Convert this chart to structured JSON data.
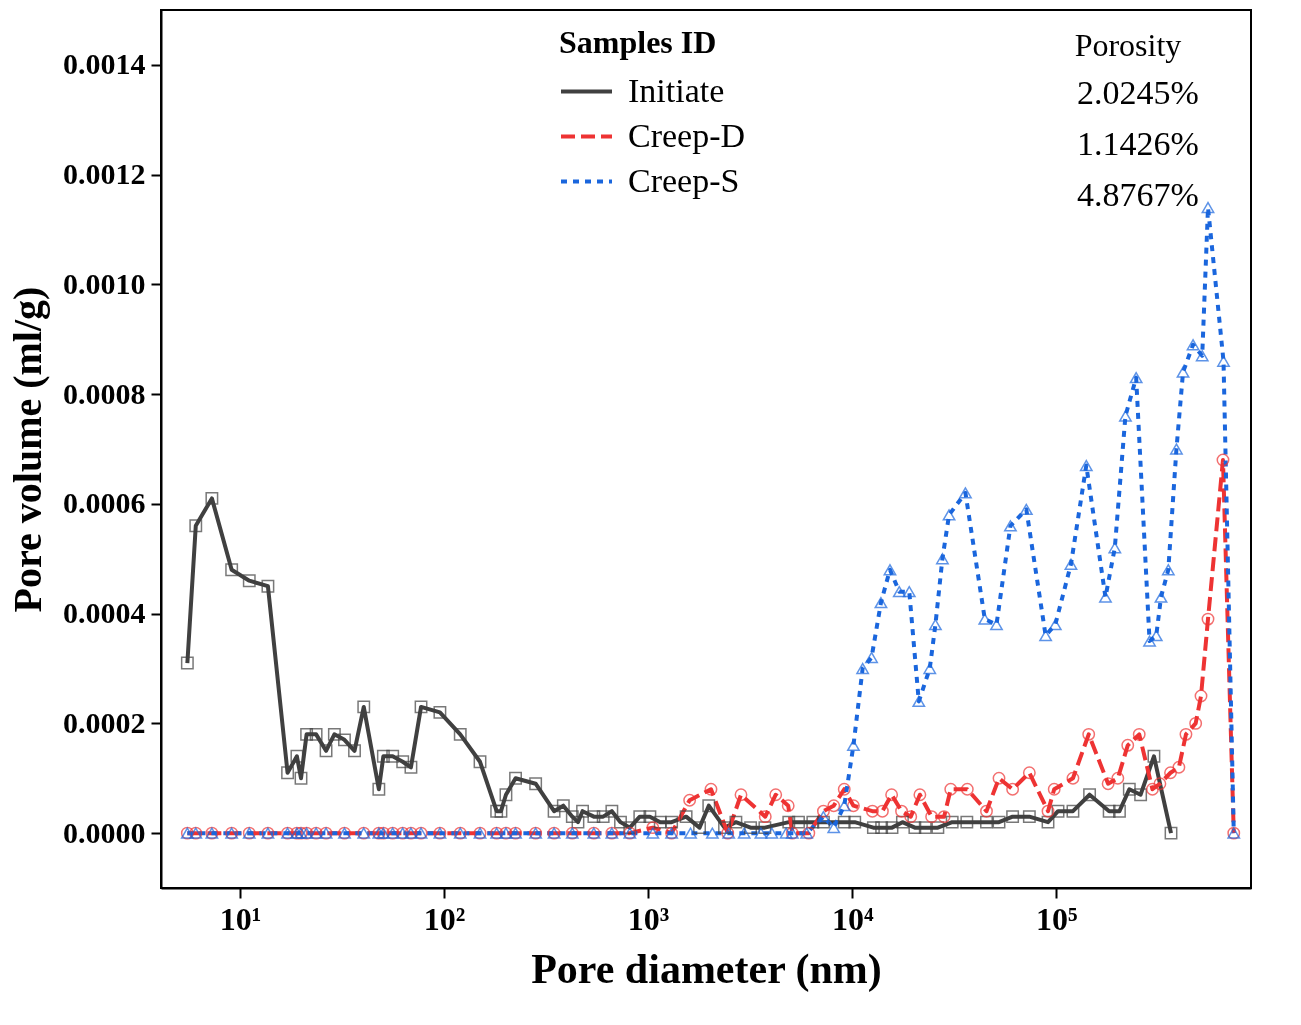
{
  "chart_data": {
    "type": "line",
    "xlabel": "Pore diameter (nm)",
    "ylabel": "Pore volume (ml/g)",
    "legend_title": "Samples ID",
    "log": "x",
    "grid": false,
    "legend": "top",
    "xlim": [
      4.1,
      900000
    ],
    "xticks": [
      {
        "value": 10,
        "label": "10¹"
      },
      {
        "value": 100,
        "label": "10²"
      },
      {
        "value": 1000,
        "label": "10³"
      },
      {
        "value": 10000,
        "label": "10⁴"
      },
      {
        "value": 100000,
        "label": "10⁵"
      }
    ],
    "ylim": [
      -0.0001,
      0.0015
    ],
    "yticks": [
      {
        "value": 0,
        "label": "0.0000"
      },
      {
        "value": 0.0002,
        "label": "0.0002"
      },
      {
        "value": 0.0004,
        "label": "0.0004"
      },
      {
        "value": 0.0006,
        "label": "0.0006"
      },
      {
        "value": 0.0008,
        "label": "0.0008"
      },
      {
        "value": 0.001,
        "label": "0.0010"
      },
      {
        "value": 0.0012,
        "label": "0.0012"
      },
      {
        "value": 0.0014,
        "label": "0.0014"
      }
    ],
    "annotations": [
      "Porosity",
      "2.0245%",
      "1.1426%",
      "4.8767%"
    ],
    "series": [
      {
        "name": "Initiate",
        "color": "#404040",
        "marker": "square",
        "line_style": "solid",
        "x": [
          5.52,
          6.07,
          7.28,
          9.1,
          11.1,
          13.7,
          17.1,
          19.0,
          19.9,
          21.2,
          23.6,
          26.4,
          29.0,
          32.5,
          36.4,
          40.4,
          47.9,
          50.4,
          56.0,
          62.7,
          68.8,
          77.1,
          95.4,
          120,
          150,
          181,
          190,
          201,
          224,
          281,
          346,
          384,
          425,
          453,
          477,
          542,
          602,
          664,
          732,
          813,
          910,
          1020,
          1146,
          1303,
          1535,
          1786,
          1982,
          2367,
          2692,
          3177,
          3733,
          4889,
          5455,
          6412,
          7228,
          9140,
          10290,
          12700,
          13940,
          15670,
          17620,
          20280,
          22800,
          26290,
          30900,
          36450,
          45500,
          52400,
          61100,
          73800,
          91100,
          102000,
          120700,
          145600,
          181600,
          204000,
          228000,
          259000,
          301000,
          365000
        ],
        "values": [
          0.00031,
          0.00056,
          0.00061,
          0.00048,
          0.00046,
          0.00045,
          0.00011,
          0.00014,
          0.0001,
          0.00018,
          0.00018,
          0.00015,
          0.00018,
          0.00017,
          0.00015,
          0.00023,
          8e-05,
          0.00014,
          0.00014,
          0.00013,
          0.00012,
          0.00023,
          0.00022,
          0.00018,
          0.00013,
          4e-05,
          4e-05,
          7e-05,
          0.0001,
          9e-05,
          4e-05,
          5e-05,
          3e-05,
          2e-05,
          4e-05,
          3e-05,
          3e-05,
          4e-05,
          2e-05,
          1e-05,
          3e-05,
          3e-05,
          2e-05,
          2e-05,
          3e-05,
          1e-05,
          5e-05,
          1e-05,
          2e-05,
          1e-05,
          1e-05,
          2e-05,
          2e-05,
          2e-05,
          2e-05,
          2e-05,
          2e-05,
          1e-05,
          1e-05,
          1e-05,
          2e-05,
          1e-05,
          1e-05,
          1e-05,
          2e-05,
          2e-05,
          2e-05,
          2e-05,
          3e-05,
          3e-05,
          2e-05,
          4e-05,
          4e-05,
          7e-05,
          4e-05,
          4e-05,
          8e-05,
          7e-05,
          0.00014,
          0
        ]
      },
      {
        "name": "Creep-D",
        "color": "#ee3333",
        "marker": "circle",
        "line_style": "dashed",
        "x": [
          5.52,
          6.07,
          7.28,
          9.1,
          11.1,
          13.7,
          17.1,
          19.0,
          19.9,
          21.2,
          23.6,
          26.4,
          32.5,
          40.4,
          47.9,
          50.4,
          56.0,
          62.7,
          68.8,
          77.1,
          95.4,
          120,
          150,
          181,
          201,
          224,
          281,
          346,
          425,
          542,
          664,
          813,
          1054,
          1303,
          1597,
          2032,
          2455,
          2851,
          3749,
          4219,
          4857,
          5087,
          6129,
          7228,
          8120,
          9140,
          10140,
          12560,
          14060,
          15600,
          17450,
          19360,
          21460,
          24500,
          28200,
          30400,
          36650,
          45500,
          52400,
          61100,
          73800,
          91100,
          97700,
          120700,
          144200,
          179500,
          200300,
          224000,
          255000,
          296000,
          322000,
          363000,
          399000,
          432000,
          482000,
          512000,
          554000,
          656000,
          741000
        ],
        "values": [
          0,
          0,
          0,
          0,
          0,
          0,
          0,
          0,
          0,
          0,
          0,
          0,
          0,
          0,
          0,
          0,
          0,
          0,
          0,
          0,
          0,
          0,
          0,
          0,
          0,
          0,
          0,
          0,
          0,
          0,
          0,
          0,
          1e-05,
          0,
          6e-05,
          8e-05,
          0,
          7e-05,
          3e-05,
          7e-05,
          5e-05,
          0,
          0,
          4e-05,
          5e-05,
          8e-05,
          5e-05,
          4e-05,
          4e-05,
          7e-05,
          4e-05,
          3e-05,
          7e-05,
          3e-05,
          3e-05,
          8e-05,
          8e-05,
          4e-05,
          0.0001,
          8e-05,
          0.00011,
          4e-05,
          8e-05,
          0.0001,
          0.00018,
          9e-05,
          0.0001,
          0.00016,
          0.00018,
          8e-05,
          9e-05,
          0.00011,
          0.00012,
          0.00018,
          0.0002,
          0.00025,
          0.00039,
          0.00068,
          0
        ]
      },
      {
        "name": "Creep-S",
        "color": "#1a66dd",
        "marker": "triangle",
        "line_style": "dotted",
        "x": [
          5.52,
          6.07,
          7.28,
          9.1,
          11.1,
          13.7,
          17.1,
          19.0,
          19.9,
          21.2,
          23.6,
          26.4,
          32.5,
          40.4,
          47.9,
          50.4,
          56.0,
          62.7,
          68.8,
          77.1,
          95.4,
          120,
          150,
          181,
          201,
          224,
          281,
          346,
          425,
          542,
          664,
          813,
          1054,
          1303,
          1614,
          2064,
          2481,
          2956,
          3570,
          4038,
          4745,
          5087,
          5982,
          7228,
          8120,
          9140,
          10140,
          11250,
          12440,
          13830,
          15310,
          17010,
          19040,
          21200,
          23990,
          25570,
          27670,
          29830,
          35880,
          44640,
          50940,
          59610,
          71330,
          88690,
          98900,
          118000,
          140300,
          174200,
          193600,
          218200,
          246300,
          286500,
          309000,
          326000,
          354000,
          388000,
          418000,
          468000,
          519000,
          554000,
          660000,
          741000
        ],
        "values": [
          0,
          0,
          0,
          0,
          0,
          0,
          0,
          0,
          0,
          0,
          0,
          0,
          0,
          0,
          0,
          0,
          0,
          0,
          0,
          0,
          0,
          0,
          0,
          0,
          0,
          0,
          0,
          0,
          0,
          0,
          0,
          0,
          0,
          0,
          0,
          0,
          0,
          0,
          0,
          0,
          0,
          0,
          0,
          3e-05,
          1e-05,
          5e-05,
          0.00016,
          0.0003,
          0.00032,
          0.00042,
          0.00048,
          0.00044,
          0.00044,
          0.00024,
          0.0003,
          0.00038,
          0.0005,
          0.00058,
          0.00062,
          0.00039,
          0.00038,
          0.00056,
          0.00059,
          0.00036,
          0.00038,
          0.00049,
          0.00067,
          0.00043,
          0.00052,
          0.00076,
          0.00083,
          0.00035,
          0.00036,
          0.00043,
          0.00048,
          0.0007,
          0.00084,
          0.00089,
          0.00087,
          0.00114,
          0.00086,
          0
        ]
      }
    ]
  }
}
